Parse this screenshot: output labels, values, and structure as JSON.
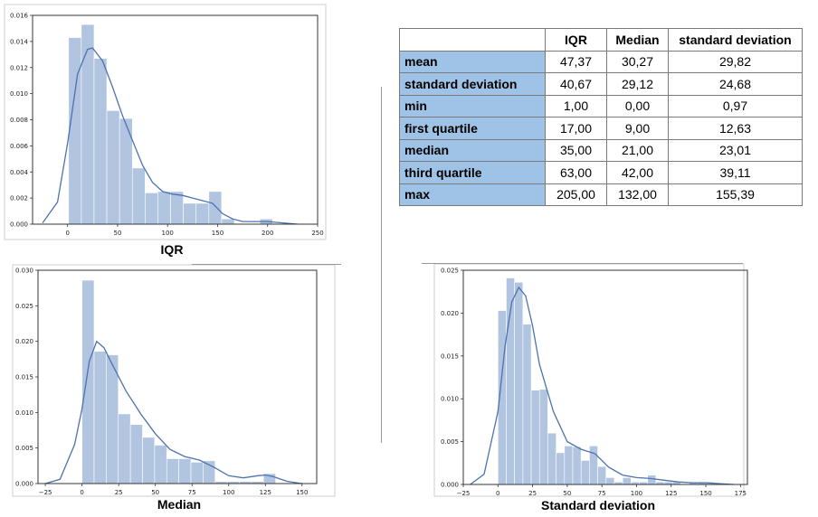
{
  "table": {
    "columns": [
      "",
      "IQR",
      "Median",
      "standard deviation"
    ],
    "rows": [
      {
        "label": "mean",
        "values": [
          "47,37",
          "30,27",
          "29,82"
        ]
      },
      {
        "label": "standard deviation",
        "values": [
          "40,67",
          "29,12",
          "24,68"
        ]
      },
      {
        "label": "min",
        "values": [
          "1,00",
          "0,00",
          "0,97"
        ]
      },
      {
        "label": "first quartile",
        "values": [
          "17,00",
          "9,00",
          "12,63"
        ]
      },
      {
        "label": "median",
        "values": [
          "35,00",
          "21,00",
          "23,01"
        ]
      },
      {
        "label": "third quartile",
        "values": [
          "63,00",
          "42,00",
          "39,11"
        ]
      },
      {
        "label": "max",
        "values": [
          "205,00",
          "132,00",
          "155,39"
        ]
      }
    ]
  },
  "colors": {
    "bar": "#b1c4e0",
    "line": "#4c72b0",
    "header_fill": "#9ec3e6"
  },
  "chart_data": [
    {
      "type": "bar",
      "title": "IQR",
      "xlim": [
        -35,
        250
      ],
      "ylim": [
        0,
        0.016
      ],
      "xticks": [
        0,
        50,
        100,
        150,
        200,
        250
      ],
      "yticks": [
        0,
        0.002,
        0.004,
        0.006,
        0.008,
        0.01,
        0.012,
        0.014,
        0.016
      ],
      "xtick_labels": [
        "0",
        "50",
        "100",
        "150",
        "200",
        "250"
      ],
      "ytick_labels": [
        "0.000",
        "0.002",
        "0.004",
        "0.006",
        "0.008",
        "0.010",
        "0.012",
        "0.014",
        "0.016"
      ],
      "bin_edges": [
        1,
        13.75,
        26.5,
        39.25,
        52,
        64.75,
        77.5,
        90.25,
        103,
        115.75,
        128.5,
        141.25,
        154,
        166.75,
        179.5,
        192.25,
        205
      ],
      "values": [
        0.0143,
        0.0153,
        0.0127,
        0.0087,
        0.0081,
        0.0043,
        0.0024,
        0.0025,
        0.0025,
        0.0016,
        0.0016,
        0.0025,
        0.0004,
        0,
        0,
        0.0004
      ],
      "kde": {
        "x": [
          -25,
          -10,
          0,
          10,
          20,
          25,
          35,
          45,
          55,
          65,
          75,
          85,
          95,
          105,
          115,
          125,
          135,
          145,
          150,
          155,
          165,
          175,
          185,
          200,
          215,
          230
        ],
        "y": [
          0.0001,
          0.0017,
          0.0062,
          0.0115,
          0.0134,
          0.0135,
          0.0125,
          0.0105,
          0.0083,
          0.0064,
          0.0045,
          0.0032,
          0.0025,
          0.0023,
          0.0022,
          0.002,
          0.0018,
          0.0016,
          0.0012,
          0.0008,
          0.0004,
          0.0002,
          0.0002,
          0.0002,
          0.0001,
          0
        ]
      }
    },
    {
      "type": "bar",
      "title": "Median",
      "xlim": [
        -30,
        160
      ],
      "ylim": [
        0,
        0.03
      ],
      "xticks": [
        -25,
        0,
        25,
        50,
        75,
        100,
        125,
        150
      ],
      "yticks": [
        0,
        0.005,
        0.01,
        0.015,
        0.02,
        0.025,
        0.03
      ],
      "xtick_labels": [
        "−25",
        "0",
        "25",
        "50",
        "75",
        "100",
        "125",
        "150"
      ],
      "ytick_labels": [
        "0.000",
        "0.005",
        "0.010",
        "0.015",
        "0.020",
        "0.025",
        "0.030"
      ],
      "bin_edges": [
        0,
        8.25,
        16.5,
        24.75,
        33,
        41.25,
        49.5,
        57.75,
        66,
        74.25,
        82.5,
        90.75,
        99,
        107.25,
        115.5,
        123.75,
        132
      ],
      "values": [
        0.0286,
        0.0186,
        0.0181,
        0.0098,
        0.0083,
        0.0065,
        0.0054,
        0.0035,
        0.0035,
        0.003,
        0.0032,
        0.0003,
        0.0003,
        0.0003,
        0.0003,
        0.0014
      ],
      "kde": {
        "x": [
          -25,
          -15,
          -5,
          0,
          5,
          10,
          15,
          20,
          30,
          40,
          50,
          60,
          70,
          80,
          90,
          100,
          110,
          120,
          125,
          130,
          140,
          150
        ],
        "y": [
          0,
          0.0006,
          0.0055,
          0.0105,
          0.0172,
          0.02,
          0.0191,
          0.017,
          0.013,
          0.0098,
          0.007,
          0.0048,
          0.0038,
          0.0033,
          0.0023,
          0.0011,
          0.0008,
          0.0011,
          0.0012,
          0.001,
          0.0003,
          0
        ]
      }
    },
    {
      "type": "bar",
      "title": "Standard deviation",
      "xlim": [
        -25,
        180
      ],
      "ylim": [
        0,
        0.025
      ],
      "xticks": [
        -25,
        0,
        25,
        50,
        75,
        100,
        125,
        150,
        175
      ],
      "yticks": [
        0,
        0.005,
        0.01,
        0.015,
        0.02,
        0.025
      ],
      "xtick_labels": [
        "−25",
        "0",
        "25",
        "50",
        "75",
        "100",
        "125",
        "150",
        "175"
      ],
      "ytick_labels": [
        "0.000",
        "0.005",
        "0.010",
        "0.015",
        "0.020",
        "0.025"
      ],
      "bin_edges": [
        0,
        6,
        12,
        18,
        24,
        30,
        36,
        42,
        48,
        54,
        60,
        66,
        72,
        78,
        84,
        90,
        96,
        102,
        108,
        114,
        120,
        126,
        132,
        138,
        144,
        150,
        156
      ],
      "values": [
        0.0203,
        0.0241,
        0.0236,
        0.0187,
        0.011,
        0.0111,
        0.006,
        0.0037,
        0.0045,
        0.0044,
        0.0028,
        0.0045,
        0.0021,
        0.0008,
        0.0003,
        0.0008,
        0.0003,
        0.0003,
        0.0011,
        0.0003,
        0.0003,
        0.0003,
        0,
        0.0003,
        0.0003,
        0.0003
      ],
      "kde": {
        "x": [
          -20,
          -10,
          0,
          5,
          10,
          15,
          20,
          25,
          30,
          40,
          50,
          60,
          70,
          80,
          90,
          100,
          110,
          120,
          130,
          140,
          150,
          160,
          170
        ],
        "y": [
          0,
          0.0012,
          0.0085,
          0.016,
          0.0213,
          0.023,
          0.022,
          0.0185,
          0.014,
          0.0085,
          0.005,
          0.0041,
          0.0036,
          0.002,
          0.0011,
          0.0008,
          0.0007,
          0.0005,
          0.0003,
          0.0002,
          0.0002,
          0.0001,
          0
        ]
      }
    }
  ]
}
